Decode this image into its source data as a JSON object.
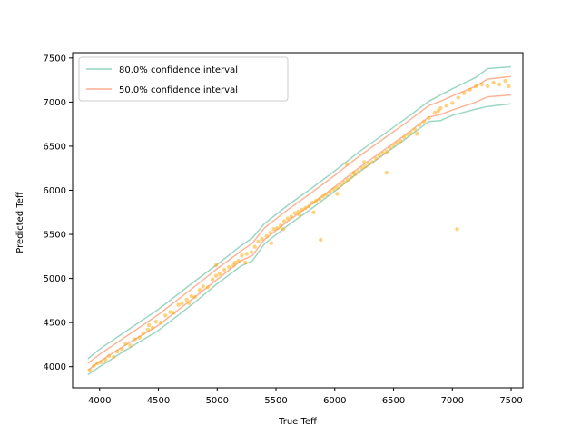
{
  "chart_data": {
    "type": "scatter",
    "xlabel": "True Teff",
    "ylabel": "Predicted Teff",
    "xlim": [
      3770,
      7600
    ],
    "ylim": [
      3760,
      7560
    ],
    "xticks": [
      4000,
      4500,
      5000,
      5500,
      6000,
      6500,
      7000,
      7500
    ],
    "yticks": [
      4000,
      4500,
      5000,
      5500,
      6000,
      6500,
      7000,
      7500
    ],
    "grid": false,
    "legend_position": "top-left",
    "colors": {
      "ci80": "#66c2a5",
      "ci50": "#fc8d62",
      "points": "#ffa500"
    },
    "intervals": [
      {
        "name": "80.0% confidence interval",
        "color": "#66c2a5",
        "x": [
          3900,
          4000,
          4200,
          4500,
          4800,
          5000,
          5200,
          5300,
          5400,
          5600,
          5800,
          6000,
          6200,
          6400,
          6600,
          6800,
          6900,
          7000,
          7200,
          7300,
          7500
        ],
        "lower": [
          3910,
          4000,
          4170,
          4410,
          4720,
          4940,
          5140,
          5200,
          5390,
          5600,
          5790,
          5990,
          6200,
          6390,
          6580,
          6780,
          6790,
          6850,
          6920,
          6950,
          6980
        ],
        "upper": [
          4090,
          4200,
          4380,
          4650,
          4960,
          5160,
          5370,
          5460,
          5620,
          5830,
          6020,
          6220,
          6430,
          6620,
          6810,
          7010,
          7080,
          7150,
          7280,
          7380,
          7400
        ]
      },
      {
        "name": "50.0% confidence interval",
        "color": "#fc8d62",
        "x": [
          3900,
          4000,
          4200,
          4500,
          4800,
          5000,
          5200,
          5300,
          5400,
          5600,
          5800,
          6000,
          6200,
          6400,
          6600,
          6800,
          6900,
          7000,
          7200,
          7300,
          7500
        ],
        "lower": [
          3960,
          4060,
          4230,
          4470,
          4780,
          4990,
          5200,
          5260,
          5440,
          5650,
          5840,
          6040,
          6250,
          6440,
          6630,
          6830,
          6860,
          6910,
          7000,
          7060,
          7080
        ],
        "upper": [
          4040,
          4140,
          4320,
          4590,
          4900,
          5110,
          5310,
          5400,
          5570,
          5780,
          5970,
          6170,
          6380,
          6570,
          6760,
          6960,
          7010,
          7070,
          7180,
          7260,
          7290
        ]
      }
    ],
    "points": [
      [
        3920,
        3960
      ],
      [
        3950,
        4010
      ],
      [
        3980,
        4040
      ],
      [
        4010,
        4050
      ],
      [
        4050,
        4080
      ],
      [
        4080,
        4120
      ],
      [
        4120,
        4110
      ],
      [
        4150,
        4170
      ],
      [
        4190,
        4200
      ],
      [
        4220,
        4260
      ],
      [
        4260,
        4240
      ],
      [
        4300,
        4310
      ],
      [
        4340,
        4330
      ],
      [
        4370,
        4380
      ],
      [
        4410,
        4420
      ],
      [
        4450,
        4440
      ],
      [
        4480,
        4510
      ],
      [
        4520,
        4500
      ],
      [
        4560,
        4580
      ],
      [
        4600,
        4620
      ],
      [
        4630,
        4610
      ],
      [
        4670,
        4700
      ],
      [
        4700,
        4720
      ],
      [
        4740,
        4760
      ],
      [
        4780,
        4800
      ],
      [
        4810,
        4790
      ],
      [
        4850,
        4870
      ],
      [
        4880,
        4910
      ],
      [
        4920,
        4900
      ],
      [
        4960,
        4990
      ],
      [
        4990,
        5030
      ],
      [
        5020,
        5050
      ],
      [
        5060,
        5100
      ],
      [
        5100,
        5130
      ],
      [
        5140,
        5150
      ],
      [
        5180,
        5200
      ],
      [
        5210,
        5260
      ],
      [
        5250,
        5280
      ],
      [
        5290,
        5300
      ],
      [
        5320,
        5360
      ],
      [
        5350,
        5420
      ],
      [
        5380,
        5450
      ],
      [
        5420,
        5480
      ],
      [
        5450,
        5520
      ],
      [
        5480,
        5560
      ],
      [
        5510,
        5570
      ],
      [
        5540,
        5600
      ],
      [
        5570,
        5650
      ],
      [
        5600,
        5680
      ],
      [
        5630,
        5700
      ],
      [
        5660,
        5740
      ],
      [
        5690,
        5760
      ],
      [
        5720,
        5780
      ],
      [
        5750,
        5800
      ],
      [
        5780,
        5820
      ],
      [
        5810,
        5860
      ],
      [
        5840,
        5880
      ],
      [
        5870,
        5900
      ],
      [
        5900,
        5930
      ],
      [
        5930,
        5950
      ],
      [
        5960,
        5980
      ],
      [
        5990,
        6010
      ],
      [
        6020,
        6030
      ],
      [
        6050,
        6060
      ],
      [
        6080,
        6090
      ],
      [
        6110,
        6120
      ],
      [
        6140,
        6150
      ],
      [
        6170,
        6180
      ],
      [
        6200,
        6210
      ],
      [
        6230,
        6250
      ],
      [
        6260,
        6270
      ],
      [
        6290,
        6300
      ],
      [
        6320,
        6320
      ],
      [
        6350,
        6360
      ],
      [
        6380,
        6390
      ],
      [
        6410,
        6420
      ],
      [
        6440,
        6440
      ],
      [
        6470,
        6480
      ],
      [
        6500,
        6510
      ],
      [
        6530,
        6540
      ],
      [
        6560,
        6560
      ],
      [
        6590,
        6600
      ],
      [
        6620,
        6630
      ],
      [
        6650,
        6650
      ],
      [
        6680,
        6690
      ],
      [
        6720,
        6740
      ],
      [
        6760,
        6780
      ],
      [
        6800,
        6820
      ],
      [
        6850,
        6880
      ],
      [
        6900,
        6930
      ],
      [
        6950,
        6960
      ],
      [
        7000,
        6990
      ],
      [
        7050,
        7050
      ],
      [
        7100,
        7100
      ],
      [
        7150,
        7140
      ],
      [
        7200,
        7180
      ],
      [
        7250,
        7200
      ],
      [
        7300,
        7180
      ],
      [
        7350,
        7220
      ],
      [
        7400,
        7200
      ],
      [
        7450,
        7240
      ],
      [
        7480,
        7180
      ],
      [
        5240,
        5180
      ],
      [
        5460,
        5400
      ],
      [
        5880,
        5440
      ],
      [
        6100,
        6300
      ],
      [
        6440,
        6200
      ],
      [
        7040,
        5560
      ],
      [
        4990,
        5150
      ],
      [
        5560,
        5560
      ],
      [
        5820,
        5750
      ],
      [
        6020,
        5960
      ],
      [
        6250,
        6320
      ],
      [
        6700,
        6640
      ],
      [
        4420,
        4470
      ],
      [
        4760,
        4720
      ],
      [
        5150,
        5180
      ],
      [
        5700,
        5720
      ],
      [
        6160,
        6200
      ],
      [
        6880,
        6900
      ]
    ]
  }
}
